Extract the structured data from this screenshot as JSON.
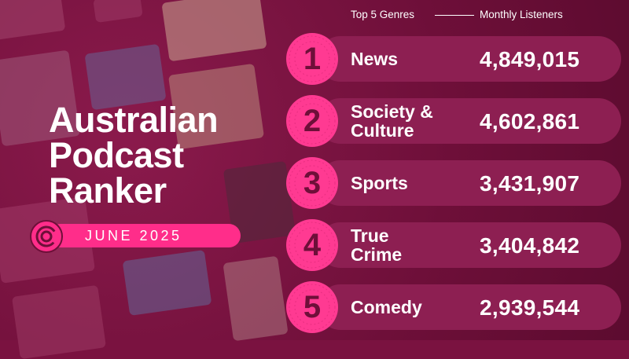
{
  "title": {
    "line1": "Australian",
    "line2": "Podcast",
    "line3": "Ranker"
  },
  "badge": {
    "date": "JUNE 2025"
  },
  "header": {
    "left": "Top 5 Genres",
    "right": "Monthly Listeners"
  },
  "genres": [
    {
      "rank": "1",
      "line1": "News",
      "line2": "",
      "listeners": "4,849,015"
    },
    {
      "rank": "2",
      "line1": "Society &",
      "line2": "Culture",
      "listeners": "4,602,861"
    },
    {
      "rank": "3",
      "line1": "Sports",
      "line2": "",
      "listeners": "3,431,907"
    },
    {
      "rank": "4",
      "line1": "True",
      "line2": "Crime",
      "listeners": "3,404,842"
    },
    {
      "rank": "5",
      "line1": "Comedy",
      "line2": "",
      "listeners": "2,939,544"
    }
  ],
  "colors": {
    "background": "#7a1240",
    "accent": "#ff2d8a",
    "row": "#8d1f52",
    "rank_text": "#6e0f39"
  }
}
